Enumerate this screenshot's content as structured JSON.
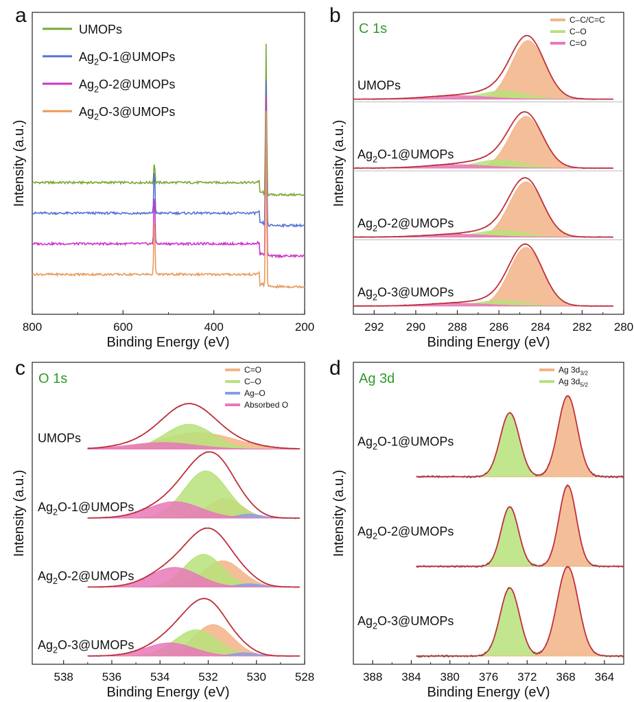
{
  "chart_data": [
    {
      "panel": "a",
      "type": "line",
      "title": "",
      "xlabel": "Binding Energy (eV)",
      "ylabel": "Intensity (a.u.)",
      "xlim": [
        800,
        200
      ],
      "reversed_x": true,
      "xticks": [
        "800",
        "600",
        "400",
        "200"
      ],
      "legend_position": "top-left",
      "series": [
        {
          "name": "UMOPs",
          "sub": "",
          "color": "#78a832",
          "baseline": 0.78,
          "peaks": [
            {
              "x": 531,
              "h": 0.14
            },
            {
              "x": 285,
              "h": 0.98
            }
          ]
        },
        {
          "name": "Ag2O-1@UMOPs",
          "sub": "2",
          "color": "#5470d4",
          "baseline": 0.58,
          "peaks": [
            {
              "x": 531,
              "h": 0.3
            },
            {
              "x": 285,
              "h": 0.95
            }
          ]
        },
        {
          "name": "Ag2O-2@UMOPs",
          "sub": "2",
          "color": "#cc33cc",
          "baseline": 0.38,
          "peaks": [
            {
              "x": 531,
              "h": 0.35
            },
            {
              "x": 285,
              "h": 1.05
            }
          ]
        },
        {
          "name": "Ag2O-3@UMOPs",
          "sub": "2",
          "color": "#e89a5a",
          "baseline": 0.18,
          "peaks": [
            {
              "x": 531,
              "h": 0.4
            },
            {
              "x": 285,
              "h": 1.15
            }
          ]
        }
      ],
      "legend": [
        {
          "prefix": "UMOPs",
          "sub": "",
          "suffix": ""
        },
        {
          "prefix": "Ag",
          "sub": "2",
          "suffix": "O-1@UMOPs"
        },
        {
          "prefix": "Ag",
          "sub": "2",
          "suffix": "O-2@UMOPs"
        },
        {
          "prefix": "Ag",
          "sub": "2",
          "suffix": "O-3@UMOPs"
        }
      ]
    },
    {
      "panel": "b",
      "type": "area",
      "title": "C 1s",
      "xlabel": "Binding Energy (eV)",
      "ylabel": "Intensity (a.u.)",
      "xlim": [
        293,
        280
      ],
      "reversed_x": true,
      "xticks": [
        "292",
        "290",
        "288",
        "286",
        "284",
        "282",
        "280"
      ],
      "legend_position": "top-right",
      "legend": [
        {
          "name": "C–C/C=C",
          "sub": "",
          "color": "#f2b486"
        },
        {
          "name": "C–O",
          "sub": "",
          "color": "#b7e27a"
        },
        {
          "name": "C=O",
          "sub": "",
          "color": "#e879b9"
        }
      ],
      "spectra": [
        {
          "label_prefix": "UMOPs",
          "label_sub": "",
          "label_suffix": "",
          "components": [
            {
              "center": 284.6,
              "width": 0.8,
              "h": 0.85
            },
            {
              "center": 285.8,
              "width": 1.1,
              "h": 0.12
            },
            {
              "center": 288.0,
              "width": 1.5,
              "h": 0.05
            }
          ]
        },
        {
          "label_prefix": "Ag",
          "label_sub": "2",
          "label_suffix": "O-1@UMOPs",
          "components": [
            {
              "center": 284.7,
              "width": 0.8,
              "h": 0.75
            },
            {
              "center": 286.0,
              "width": 1.1,
              "h": 0.12
            },
            {
              "center": 288.0,
              "width": 1.5,
              "h": 0.05
            }
          ]
        },
        {
          "label_prefix": "Ag",
          "label_sub": "2",
          "label_suffix": "O-2@UMOPs",
          "components": [
            {
              "center": 284.7,
              "width": 0.8,
              "h": 0.8
            },
            {
              "center": 285.9,
              "width": 1.1,
              "h": 0.1
            },
            {
              "center": 288.0,
              "width": 1.5,
              "h": 0.04
            }
          ]
        },
        {
          "label_prefix": "Ag",
          "label_sub": "2",
          "label_suffix": "O-3@UMOPs",
          "components": [
            {
              "center": 284.7,
              "width": 0.8,
              "h": 0.85
            },
            {
              "center": 285.9,
              "width": 1.1,
              "h": 0.08
            },
            {
              "center": 288.0,
              "width": 1.5,
              "h": 0.04
            }
          ]
        }
      ]
    },
    {
      "panel": "c",
      "type": "area",
      "title": "O 1s",
      "xlabel": "Binding Energy (eV)",
      "ylabel": "Intensity (a.u.)",
      "xlim": [
        539.3,
        528
      ],
      "reversed_x": true,
      "xticks": [
        "538",
        "536",
        "534",
        "532",
        "530",
        "528"
      ],
      "legend_position": "top-right",
      "legend": [
        {
          "name": "C=O",
          "sub": "",
          "color": "#f2b486"
        },
        {
          "name": "C–O",
          "sub": "",
          "color": "#b7e27a"
        },
        {
          "name": "Ag–O",
          "sub": "",
          "color": "#8c9ae8"
        },
        {
          "name": "Absorbed O",
          "sub": "",
          "color": "#e879b9"
        }
      ],
      "spectra": [
        {
          "label_prefix": "UMOPs",
          "label_sub": "",
          "label_suffix": "",
          "components": [
            {
              "center": 532.4,
              "width": 1.5,
              "h": 0.25,
              "color": "#f2b486"
            },
            {
              "center": 532.8,
              "width": 1.0,
              "h": 0.38,
              "color": "#b7e27a"
            },
            {
              "center": 533.9,
              "width": 1.4,
              "h": 0.1,
              "color": "#e879b9"
            }
          ]
        },
        {
          "label_prefix": "Ag",
          "label_sub": "2",
          "label_suffix": "O-1@UMOPs",
          "components": [
            {
              "center": 531.3,
              "width": 0.7,
              "h": 0.3,
              "color": "#f2b486"
            },
            {
              "center": 532.1,
              "width": 0.9,
              "h": 0.72,
              "color": "#b7e27a"
            },
            {
              "center": 530.3,
              "width": 0.5,
              "h": 0.06,
              "color": "#8c9ae8"
            },
            {
              "center": 533.4,
              "width": 1.1,
              "h": 0.25,
              "color": "#e879b9"
            }
          ]
        },
        {
          "label_prefix": "Ag",
          "label_sub": "2",
          "label_suffix": "O-2@UMOPs",
          "components": [
            {
              "center": 531.4,
              "width": 0.8,
              "h": 0.4,
              "color": "#f2b486"
            },
            {
              "center": 532.2,
              "width": 0.8,
              "h": 0.5,
              "color": "#b7e27a"
            },
            {
              "center": 530.3,
              "width": 0.5,
              "h": 0.05,
              "color": "#8c9ae8"
            },
            {
              "center": 533.4,
              "width": 1.0,
              "h": 0.3,
              "color": "#e879b9"
            }
          ]
        },
        {
          "label_prefix": "Ag",
          "label_sub": "2",
          "label_suffix": "O-3@UMOPs",
          "components": [
            {
              "center": 531.8,
              "width": 0.8,
              "h": 0.48,
              "color": "#f2b486"
            },
            {
              "center": 532.5,
              "width": 0.9,
              "h": 0.4,
              "color": "#b7e27a"
            },
            {
              "center": 530.5,
              "width": 0.5,
              "h": 0.05,
              "color": "#8c9ae8"
            },
            {
              "center": 533.6,
              "width": 1.0,
              "h": 0.2,
              "color": "#e879b9"
            }
          ]
        }
      ]
    },
    {
      "panel": "d",
      "type": "area",
      "title": "Ag 3d",
      "xlabel": "Binding Energy (eV)",
      "ylabel": "Intensity (a.u.)",
      "xlim": [
        390,
        362
      ],
      "reversed_x": true,
      "xticks": [
        "388",
        "384",
        "380",
        "376",
        "372",
        "368",
        "364"
      ],
      "legend_position": "top-right",
      "legend": [
        {
          "name": "Ag 3d",
          "sub": "3/2",
          "color": "#f2b486"
        },
        {
          "name": "Ag 3d",
          "sub": "5/2",
          "color": "#b7e27a"
        }
      ],
      "spectra": [
        {
          "label_prefix": "Ag",
          "label_sub": "2",
          "label_suffix": "O-1@UMOPs",
          "components": [
            {
              "center": 373.8,
              "width": 1.0,
              "h": 0.75,
              "color": "#b7e27a"
            },
            {
              "center": 367.8,
              "width": 1.0,
              "h": 0.95,
              "color": "#f2b486"
            }
          ]
        },
        {
          "label_prefix": "Ag",
          "label_sub": "2",
          "label_suffix": "O-2@UMOPs",
          "components": [
            {
              "center": 373.8,
              "width": 0.9,
              "h": 0.7,
              "color": "#b7e27a"
            },
            {
              "center": 367.8,
              "width": 0.9,
              "h": 0.95,
              "color": "#f2b486"
            }
          ]
        },
        {
          "label_prefix": "Ag",
          "label_sub": "2",
          "label_suffix": "O-3@UMOPs",
          "components": [
            {
              "center": 373.8,
              "width": 1.0,
              "h": 0.8,
              "color": "#b7e27a"
            },
            {
              "center": 367.8,
              "width": 1.1,
              "h": 1.05,
              "color": "#f2b486"
            }
          ]
        }
      ]
    }
  ]
}
